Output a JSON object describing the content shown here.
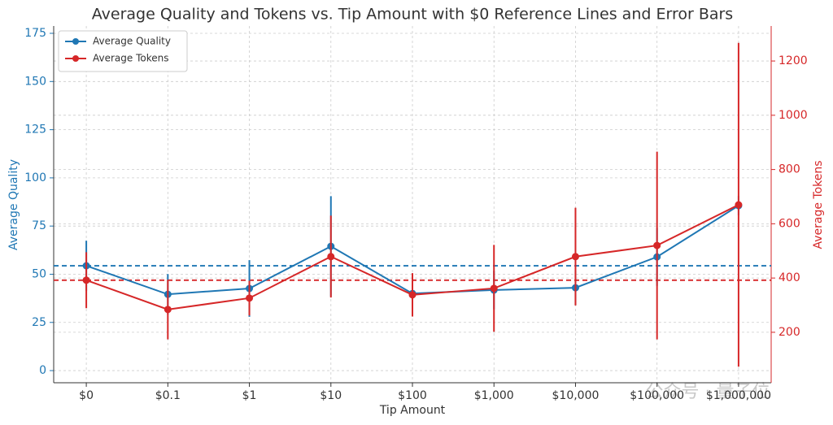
{
  "chart_data": {
    "type": "line",
    "title": "Average Quality and Tokens vs. Tip Amount with $0 Reference Lines and Error Bars",
    "x_label": "Tip Amount",
    "y_label": "Average Quality",
    "y2_label": "Average Tokens",
    "categories": [
      "$0",
      "$0.1",
      "$1",
      "$10",
      "$100",
      "$1,000",
      "$10,000",
      "$100,000",
      "$1,000,000"
    ],
    "series": [
      {
        "name": "Average Quality",
        "color": "#1f77b4",
        "axis": "y",
        "values": [
          54.4,
          39.6,
          42.6,
          64.5,
          40,
          41.8,
          43,
          59,
          85.6
        ],
        "errors": [
          13,
          10.5,
          14.7,
          26,
          9,
          10,
          9,
          15,
          5
        ]
      },
      {
        "name": "Average Tokens",
        "color": "#d62728",
        "axis": "y2",
        "values": [
          392,
          284,
          326,
          479,
          338,
          362,
          479,
          520,
          670
        ],
        "errors": [
          103,
          110,
          64,
          151,
          80,
          160,
          180,
          346,
          597
        ]
      }
    ],
    "ylim": [
      -6.3,
      178.8
    ],
    "yticks": [
      0,
      25,
      50,
      75,
      100,
      125,
      150,
      175
    ],
    "y2lim": [
      14,
      1329
    ],
    "y2ticks": [
      200,
      400,
      600,
      800,
      1000,
      1200
    ],
    "grid": true,
    "legend": "upper-left",
    "reference_lines": "first-value",
    "watermark": "公众号 · 量子位"
  }
}
